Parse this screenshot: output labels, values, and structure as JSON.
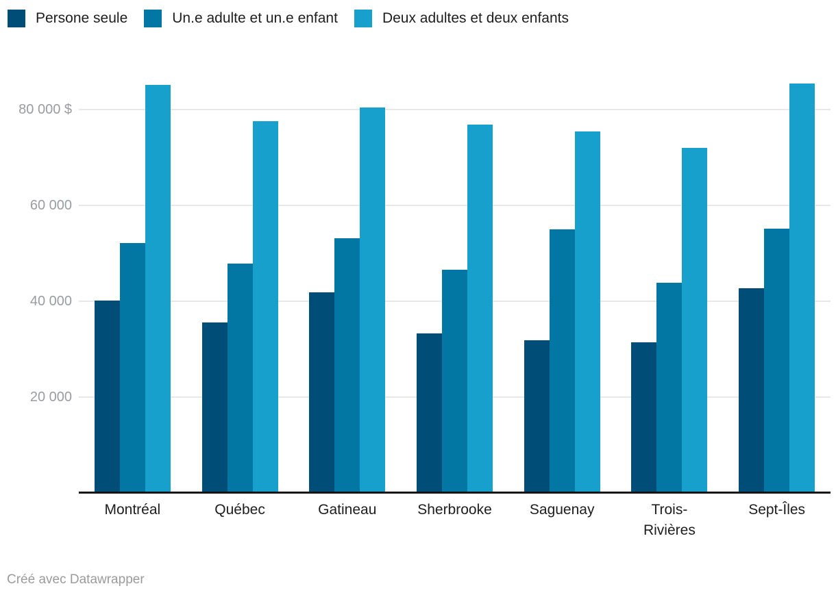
{
  "legend": {
    "items": [
      {
        "label": "Persone seule",
        "color": "#004e78"
      },
      {
        "label": "Un.e adulte et un.e enfant",
        "color": "#0277a3"
      },
      {
        "label": "Deux adultes et deux enfants",
        "color": "#18a0cd"
      }
    ]
  },
  "chart_data": {
    "type": "bar",
    "title": "",
    "categories": [
      "Montréal",
      "Québec",
      "Gatineau",
      "Sherbrooke",
      "Saguenay",
      "Trois-Rivières",
      "Sept-Îles"
    ],
    "series": [
      {
        "name": "Persone seule",
        "color": "#004e78",
        "values": [
          40100,
          35600,
          41800,
          33300,
          31900,
          31500,
          42700
        ]
      },
      {
        "name": "Un.e adulte et un.e enfant",
        "color": "#0277a3",
        "values": [
          52100,
          47800,
          53100,
          46600,
          55000,
          43800,
          55200
        ]
      },
      {
        "name": "Deux adultes et deux enfants",
        "color": "#18a0cd",
        "values": [
          85200,
          77600,
          80500,
          76800,
          75400,
          72000,
          85400
        ]
      }
    ],
    "xlabel": "",
    "ylabel": "",
    "ylim": [
      0,
      90000
    ],
    "yticks": [
      {
        "value": 20000,
        "label": "20 000"
      },
      {
        "value": 40000,
        "label": "40 000"
      },
      {
        "value": 60000,
        "label": "60 000"
      },
      {
        "value": 80000,
        "label": "80 000 $"
      }
    ],
    "grid": true,
    "legend_position": "top"
  },
  "footer": {
    "credit": "Créé avec Datawrapper"
  }
}
